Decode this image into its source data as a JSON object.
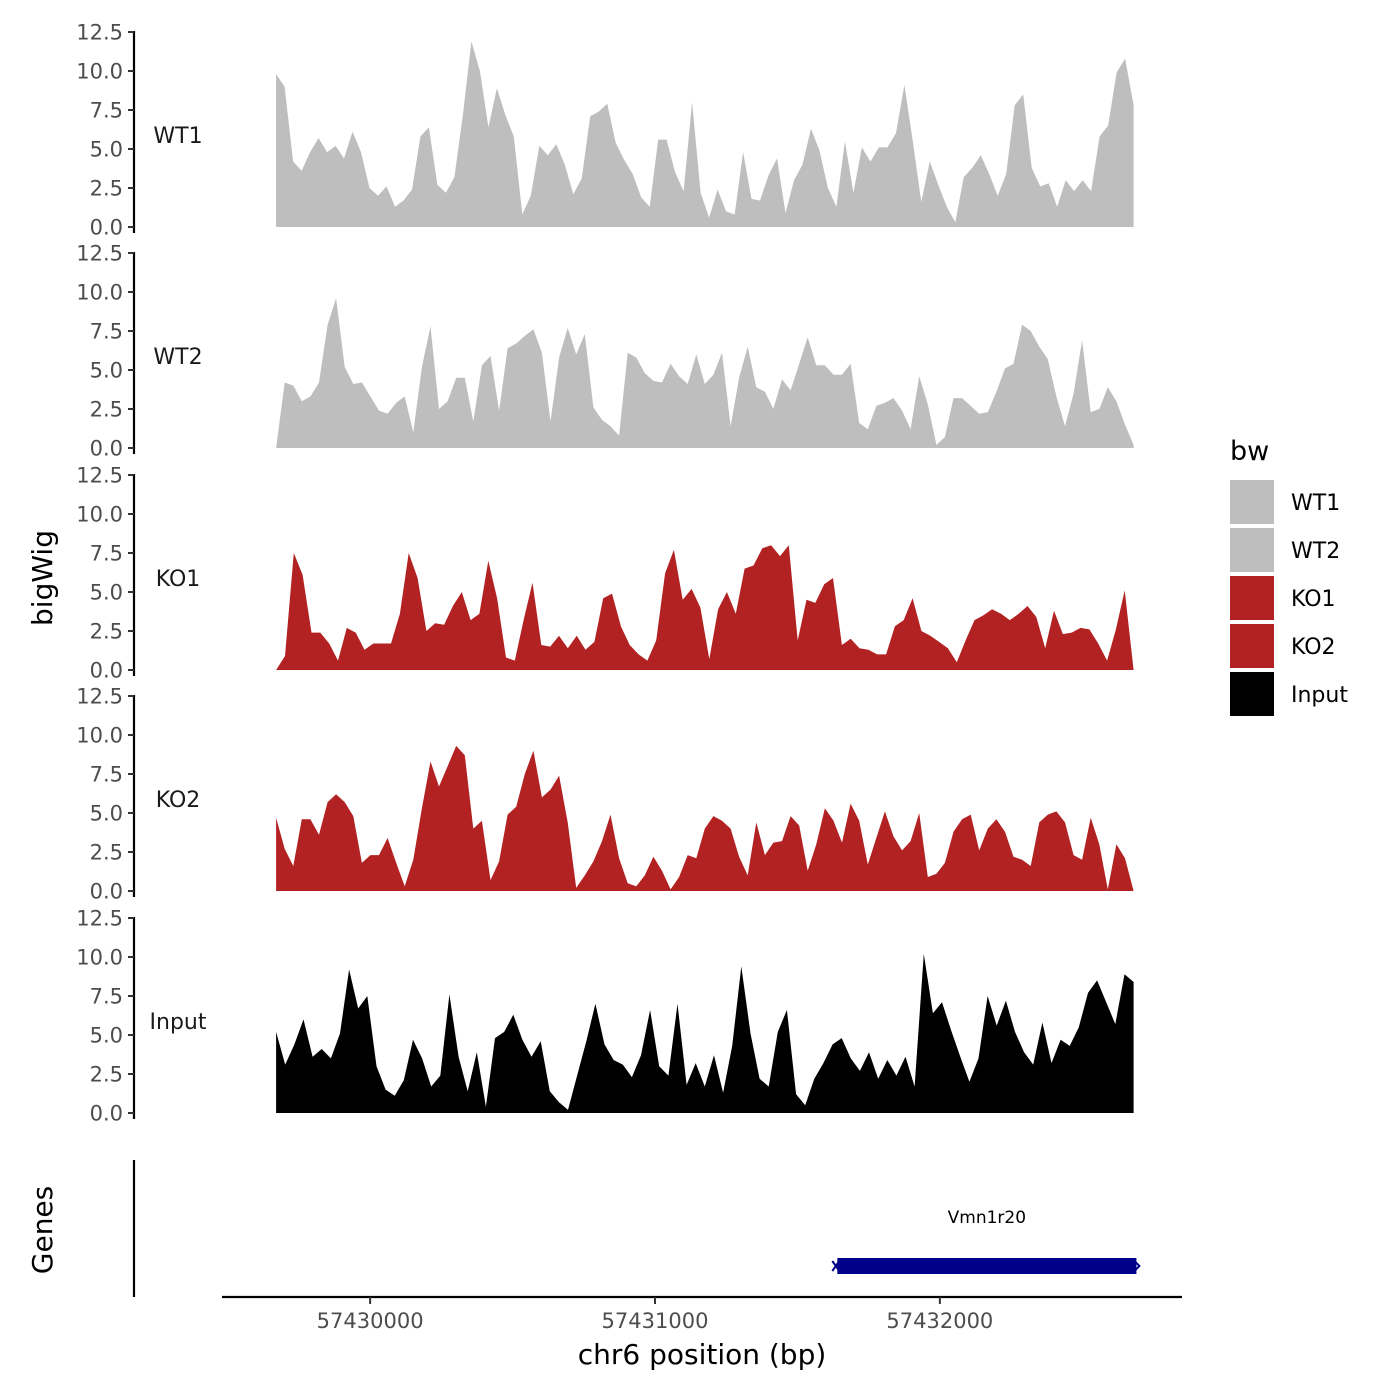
{
  "chart_data": {
    "type": "area",
    "ylabel": "bigWig",
    "genes_label": "Genes",
    "xlabel": "chr6 position (bp)",
    "ylim": [
      0,
      12.5
    ],
    "y_ticks": [
      "0.0",
      "2.5",
      "5.0",
      "7.5",
      "10.0",
      "12.5"
    ],
    "y_tick_values": [
      0,
      2.5,
      5,
      7.5,
      10,
      12.5
    ],
    "xlim": [
      57429480,
      57432850
    ],
    "x_ticks": [
      "57430000",
      "57431000",
      "57432000"
    ],
    "x_tick_values": [
      57430000,
      57431000,
      57432000
    ],
    "data_range": [
      57429670,
      57432680
    ],
    "legend": {
      "title": "bw",
      "position": "right"
    },
    "series": [
      {
        "name": "WT1",
        "color": "#bebebe",
        "values": [
          9.8,
          9.0,
          4.2,
          3.6,
          4.8,
          5.7,
          4.8,
          5.2,
          4.4,
          6.1,
          4.8,
          2.5,
          2.0,
          2.6,
          1.3,
          1.7,
          2.4,
          5.8,
          6.4,
          2.7,
          2.2,
          3.2,
          7.2,
          11.9,
          10.0,
          6.4,
          8.9,
          7.2,
          5.8,
          0.8,
          2.0,
          5.2,
          4.6,
          5.3,
          4.0,
          2.1,
          3.1,
          7.1,
          7.4,
          7.9,
          5.4,
          4.3,
          3.4,
          1.9,
          1.3,
          5.6,
          5.6,
          3.5,
          2.3,
          8.0,
          2.2,
          0.6,
          2.4,
          1.0,
          0.8,
          4.8,
          1.8,
          1.7,
          3.3,
          4.4,
          0.9,
          3.0,
          4.0,
          6.3,
          4.9,
          2.5,
          1.3,
          5.5,
          2.2,
          5.1,
          4.2,
          5.1,
          5.1,
          6.0,
          9.1,
          5.5,
          1.6,
          4.2,
          2.7,
          1.3,
          0.3,
          3.2,
          3.8,
          4.6,
          3.4,
          2.0,
          3.4,
          7.8,
          8.5,
          3.8,
          2.6,
          2.8,
          1.3,
          3.0,
          2.3,
          3.0,
          2.3,
          5.8,
          6.5,
          9.9,
          10.8,
          7.8
        ]
      },
      {
        "name": "WT2",
        "color": "#bebebe",
        "values": [
          0.0,
          4.2,
          4.0,
          3.0,
          3.3,
          4.2,
          7.9,
          9.6,
          5.2,
          4.1,
          4.2,
          3.3,
          2.4,
          2.2,
          2.9,
          3.3,
          1.0,
          5.2,
          7.8,
          2.5,
          3.0,
          4.5,
          4.5,
          1.7,
          5.3,
          5.9,
          2.4,
          6.4,
          6.7,
          7.2,
          7.6,
          6.1,
          1.7,
          5.8,
          7.7,
          6.0,
          7.3,
          2.6,
          1.8,
          1.4,
          0.8,
          6.1,
          5.8,
          4.8,
          4.3,
          4.2,
          5.4,
          4.6,
          4.1,
          6.0,
          4.1,
          4.7,
          6.1,
          1.4,
          4.5,
          6.5,
          3.9,
          3.6,
          2.5,
          4.4,
          3.7,
          5.4,
          7.1,
          5.3,
          5.3,
          4.7,
          4.7,
          5.4,
          1.6,
          1.2,
          2.7,
          2.9,
          3.2,
          2.4,
          1.2,
          4.6,
          2.8,
          0.2,
          0.7,
          3.2,
          3.2,
          2.7,
          2.2,
          2.3,
          3.6,
          5.1,
          5.4,
          7.9,
          7.5,
          6.5,
          5.7,
          3.3,
          1.4,
          3.5,
          6.9,
          2.3,
          2.5,
          3.9,
          3.0,
          1.5,
          0.2
        ]
      },
      {
        "name": "KO1",
        "color": "#b22222",
        "values": [
          0.0,
          0.9,
          7.5,
          6.1,
          2.4,
          2.4,
          1.7,
          0.6,
          2.7,
          2.4,
          1.3,
          1.7,
          1.7,
          1.7,
          3.6,
          7.5,
          5.9,
          2.5,
          3.0,
          2.9,
          4.1,
          5.0,
          3.2,
          3.6,
          7.0,
          4.6,
          0.8,
          0.6,
          3.2,
          5.6,
          1.6,
          1.5,
          2.2,
          1.4,
          2.2,
          1.3,
          1.8,
          4.6,
          4.9,
          2.8,
          1.6,
          1.0,
          0.6,
          1.9,
          6.2,
          7.7,
          4.5,
          5.2,
          4.0,
          0.7,
          3.9,
          5.0,
          3.6,
          6.5,
          6.7,
          7.8,
          8.0,
          7.3,
          8.0,
          1.9,
          4.5,
          4.3,
          5.5,
          5.9,
          1.6,
          2.0,
          1.4,
          1.3,
          1.0,
          1.0,
          2.8,
          3.2,
          4.6,
          2.5,
          2.2,
          1.8,
          1.4,
          0.5,
          1.9,
          3.2,
          3.5,
          3.9,
          3.6,
          3.2,
          3.6,
          4.1,
          3.4,
          1.4,
          3.8,
          2.3,
          2.4,
          2.7,
          2.6,
          1.7,
          0.6,
          2.6,
          5.1,
          0.0
        ]
      },
      {
        "name": "KO2",
        "color": "#b22222",
        "values": [
          4.7,
          2.7,
          1.6,
          4.6,
          4.6,
          3.6,
          5.7,
          6.2,
          5.7,
          4.8,
          1.8,
          2.3,
          2.3,
          3.4,
          1.8,
          0.3,
          2.0,
          5.3,
          8.3,
          6.7,
          8.0,
          9.3,
          8.7,
          4.0,
          4.5,
          0.7,
          1.9,
          4.9,
          5.4,
          7.5,
          9.0,
          6.0,
          6.5,
          7.4,
          4.4,
          0.2,
          1.0,
          1.9,
          3.2,
          4.9,
          2.1,
          0.5,
          0.3,
          1.0,
          2.2,
          1.3,
          0.1,
          0.9,
          2.3,
          2.1,
          4.0,
          4.8,
          4.5,
          4.0,
          2.2,
          1.0,
          4.4,
          2.3,
          3.1,
          3.2,
          4.8,
          4.2,
          1.3,
          3.0,
          5.3,
          4.5,
          3.1,
          5.6,
          4.5,
          1.7,
          3.4,
          5.1,
          3.5,
          2.6,
          3.2,
          5.0,
          0.9,
          1.1,
          1.8,
          3.8,
          4.6,
          4.9,
          2.6,
          4.0,
          4.6,
          3.8,
          2.2,
          2.0,
          1.6,
          4.4,
          4.9,
          5.1,
          4.4,
          2.3,
          2.0,
          4.7,
          3.0,
          0.1,
          3.0,
          2.1,
          0.0
        ]
      },
      {
        "name": "Input",
        "color": "#000000",
        "values": [
          5.2,
          3.1,
          4.4,
          6.0,
          3.6,
          4.1,
          3.5,
          5.1,
          9.2,
          6.7,
          7.5,
          3.0,
          1.5,
          1.1,
          2.1,
          4.7,
          3.5,
          1.7,
          2.4,
          7.6,
          3.6,
          1.4,
          3.9,
          0.4,
          4.8,
          5.2,
          6.3,
          4.7,
          3.6,
          4.6,
          1.4,
          0.7,
          0.2,
          2.4,
          4.6,
          7.0,
          4.4,
          3.4,
          3.1,
          2.3,
          3.7,
          6.6,
          3.0,
          2.4,
          7.0,
          1.8,
          3.2,
          1.7,
          3.7,
          1.3,
          4.3,
          9.4,
          5.1,
          2.2,
          1.7,
          5.2,
          6.6,
          1.2,
          0.5,
          2.2,
          3.2,
          4.4,
          4.8,
          3.5,
          2.7,
          3.9,
          2.2,
          3.4,
          2.4,
          3.6,
          1.7,
          10.2,
          6.4,
          7.1,
          5.3,
          3.6,
          2.0,
          3.5,
          7.5,
          5.6,
          7.2,
          5.2,
          3.9,
          3.1,
          5.8,
          3.2,
          4.7,
          4.3,
          5.5,
          7.7,
          8.5,
          7.1,
          5.7,
          8.9,
          8.4
        ]
      }
    ],
    "genes": [
      {
        "name": "Vmn1r20",
        "start": 57431640,
        "end": 57432690,
        "strand": "+",
        "color": "#00008b"
      }
    ]
  }
}
